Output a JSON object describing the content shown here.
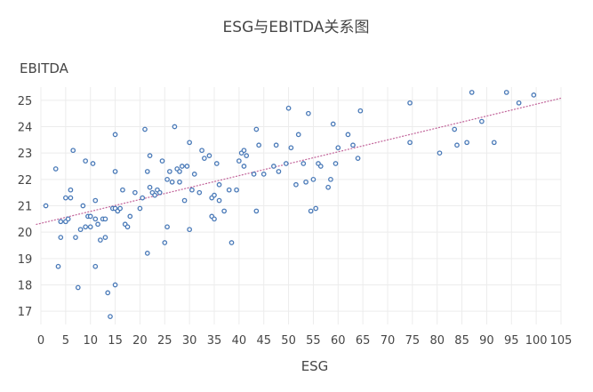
{
  "chart_data": {
    "type": "scatter",
    "title": "ESG与EBITDA关系图",
    "xlabel": "ESG",
    "ylabel": "EBITDA",
    "xlim": [
      0,
      105
    ],
    "ylim": [
      16.5,
      25.5
    ],
    "x_ticks": [
      0,
      5,
      10,
      15,
      20,
      25,
      30,
      35,
      40,
      45,
      50,
      55,
      60,
      65,
      70,
      75,
      80,
      85,
      90,
      95,
      100,
      105
    ],
    "y_ticks": [
      17,
      18,
      19,
      20,
      21,
      22,
      23,
      24,
      25
    ],
    "grid": true,
    "legend": "none",
    "colors": {
      "points": "#4a7ab8",
      "trendline": "#c2649a",
      "grid": "#ececec",
      "text": "#464646"
    },
    "series": [
      {
        "points": [
          [
            1,
            21.0
          ],
          [
            3,
            22.4
          ],
          [
            3.5,
            18.7
          ],
          [
            4,
            19.8
          ],
          [
            4,
            20.4
          ],
          [
            5,
            21.3
          ],
          [
            5,
            20.4
          ],
          [
            5.5,
            20.5
          ],
          [
            6,
            21.3
          ],
          [
            6,
            21.6
          ],
          [
            6.5,
            23.1
          ],
          [
            7,
            19.8
          ],
          [
            7.5,
            17.9
          ],
          [
            8,
            20.1
          ],
          [
            8.5,
            21.0
          ],
          [
            9,
            22.7
          ],
          [
            9,
            20.2
          ],
          [
            9.5,
            20.6
          ],
          [
            10,
            20.6
          ],
          [
            10,
            20.2
          ],
          [
            10.5,
            22.6
          ],
          [
            11,
            21.2
          ],
          [
            11,
            18.7
          ],
          [
            11,
            20.5
          ],
          [
            11.5,
            20.3
          ],
          [
            12,
            19.7
          ],
          [
            12.5,
            20.5
          ],
          [
            13,
            19.8
          ],
          [
            13,
            20.5
          ],
          [
            13.5,
            17.7
          ],
          [
            14,
            16.8
          ],
          [
            14.5,
            20.9
          ],
          [
            15,
            20.9
          ],
          [
            15,
            18.0
          ],
          [
            15,
            22.3
          ],
          [
            15,
            23.7
          ],
          [
            15.5,
            20.8
          ],
          [
            16,
            20.9
          ],
          [
            16.5,
            21.6
          ],
          [
            17,
            20.3
          ],
          [
            17.5,
            20.2
          ],
          [
            18,
            20.6
          ],
          [
            19,
            21.5
          ],
          [
            20,
            20.9
          ],
          [
            20.5,
            21.3
          ],
          [
            21,
            23.9
          ],
          [
            21.5,
            19.2
          ],
          [
            21.5,
            22.3
          ],
          [
            22,
            21.7
          ],
          [
            22,
            22.9
          ],
          [
            22.5,
            21.5
          ],
          [
            23,
            21.4
          ],
          [
            23.5,
            21.6
          ],
          [
            24,
            21.5
          ],
          [
            24.5,
            22.7
          ],
          [
            25,
            19.6
          ],
          [
            25.5,
            22.0
          ],
          [
            25.5,
            20.2
          ],
          [
            26,
            22.3
          ],
          [
            26.5,
            21.9
          ],
          [
            27,
            24.0
          ],
          [
            27.5,
            22.4
          ],
          [
            28,
            21.9
          ],
          [
            28,
            22.3
          ],
          [
            28.5,
            22.5
          ],
          [
            29,
            21.2
          ],
          [
            29.5,
            22.5
          ],
          [
            30,
            23.4
          ],
          [
            30,
            20.1
          ],
          [
            30.5,
            21.6
          ],
          [
            31,
            22.2
          ],
          [
            32,
            21.5
          ],
          [
            32.5,
            23.1
          ],
          [
            33,
            22.8
          ],
          [
            34,
            22.9
          ],
          [
            34.5,
            20.6
          ],
          [
            34.5,
            21.3
          ],
          [
            35,
            21.4
          ],
          [
            35,
            20.5
          ],
          [
            35.5,
            22.6
          ],
          [
            36,
            21.2
          ],
          [
            36,
            21.8
          ],
          [
            37,
            20.8
          ],
          [
            38,
            21.6
          ],
          [
            38.5,
            19.6
          ],
          [
            39.5,
            21.6
          ],
          [
            40,
            22.7
          ],
          [
            40.5,
            23.0
          ],
          [
            41,
            22.5
          ],
          [
            41,
            23.1
          ],
          [
            41.5,
            22.9
          ],
          [
            43,
            22.2
          ],
          [
            43.5,
            23.9
          ],
          [
            43.5,
            20.8
          ],
          [
            44,
            23.3
          ],
          [
            45,
            22.2
          ],
          [
            47,
            22.5
          ],
          [
            47.5,
            23.3
          ],
          [
            48,
            22.3
          ],
          [
            49.5,
            22.6
          ],
          [
            50,
            24.7
          ],
          [
            50.5,
            23.2
          ],
          [
            51.5,
            21.8
          ],
          [
            52,
            23.7
          ],
          [
            53,
            22.6
          ],
          [
            53.5,
            21.9
          ],
          [
            54,
            24.5
          ],
          [
            54.5,
            20.8
          ],
          [
            55,
            22.0
          ],
          [
            55.5,
            20.9
          ],
          [
            56,
            22.6
          ],
          [
            56.5,
            22.5
          ],
          [
            58,
            21.7
          ],
          [
            58.5,
            22.0
          ],
          [
            59,
            24.1
          ],
          [
            59.5,
            22.6
          ],
          [
            60,
            23.2
          ],
          [
            62,
            23.7
          ],
          [
            63,
            23.3
          ],
          [
            64,
            22.8
          ],
          [
            64.5,
            24.6
          ],
          [
            74.5,
            24.9
          ],
          [
            74.5,
            23.4
          ],
          [
            80.5,
            23.0
          ],
          [
            83.5,
            23.9
          ],
          [
            84,
            23.3
          ],
          [
            86,
            23.4
          ],
          [
            87,
            25.3
          ],
          [
            89,
            24.2
          ],
          [
            91.5,
            23.4
          ],
          [
            94,
            25.3
          ],
          [
            96.5,
            24.9
          ],
          [
            99.5,
            25.2
          ]
        ]
      }
    ],
    "trendline": {
      "x": [
        -1,
        105
      ],
      "y": [
        20.29,
        25.08
      ]
    }
  }
}
